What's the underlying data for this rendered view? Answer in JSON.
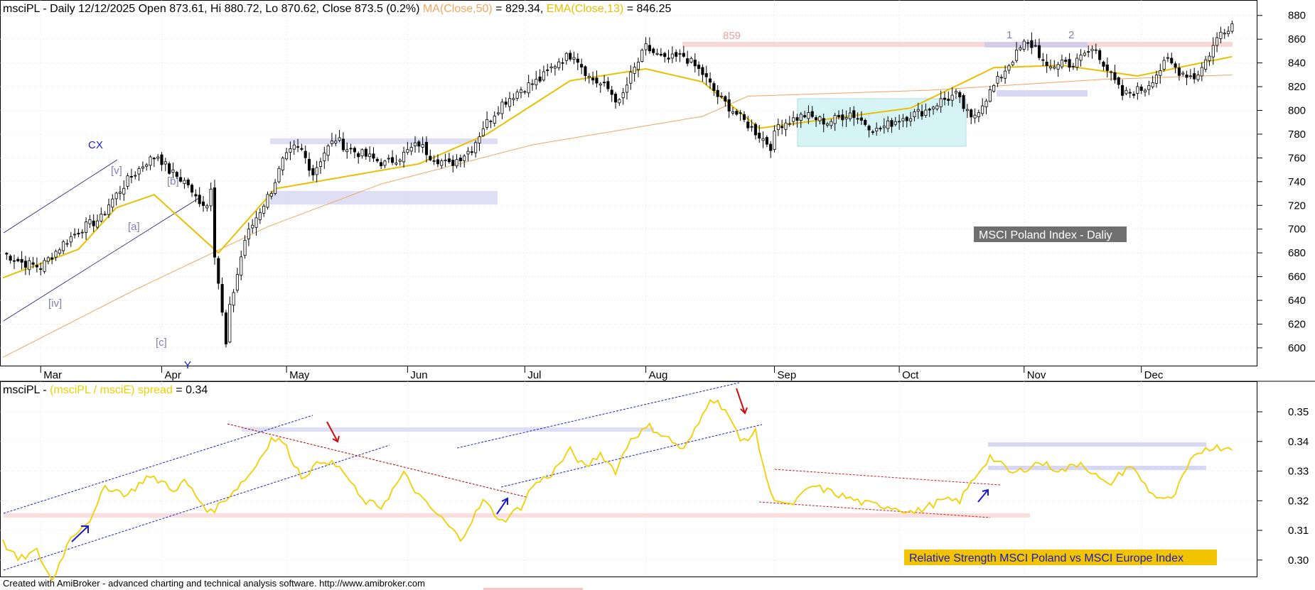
{
  "header": {
    "symbol": "msciPL",
    "info": " - Daily 12/12/2025 Open 873.61, Hi 880.72, Lo 870.62, Close 873.5 (0.2%) ",
    "ma_label": "MA(Close,50)",
    "ma_value": " = 829.34, ",
    "ema_label": "EMA(Close,13)",
    "ema_value": " = 846.25"
  },
  "lower_header": {
    "symbol": "msciPL",
    "sep": " - ",
    "spread_label": "(msciPL / msciE) spread",
    "spread_value": " = 0.34"
  },
  "footer": "Created with AmiBroker - advanced charting and technical analysis software. http://www.amibroker.com",
  "chart_data": [
    {
      "type": "candlestick",
      "series": [
        {
          "name": "msciPL",
          "kind": "ohlc"
        },
        {
          "name": "MA(Close,50)",
          "color": "#f4a460"
        },
        {
          "name": "EMA(Close,13)",
          "color": "#e8c000"
        }
      ],
      "x_months": [
        "Mar",
        "Apr",
        "May",
        "Jun",
        "Jul",
        "Aug",
        "Sep",
        "Oct",
        "Nov",
        "Dec"
      ],
      "y_ticks": [
        600,
        620,
        640,
        660,
        680,
        700,
        720,
        740,
        760,
        780,
        800,
        820,
        840,
        860,
        880
      ],
      "ylim": [
        585,
        893
      ],
      "close_path": [
        [
          0,
          680
        ],
        [
          5,
          672
        ],
        [
          10,
          668
        ],
        [
          16,
          688
        ],
        [
          21,
          701
        ],
        [
          26,
          709
        ],
        [
          28,
          721
        ],
        [
          33,
          741
        ],
        [
          38,
          757
        ],
        [
          41,
          762
        ],
        [
          44,
          749
        ],
        [
          49,
          738
        ],
        [
          50,
          729
        ],
        [
          53,
          722
        ],
        [
          54,
          720
        ],
        [
          55,
          737
        ],
        [
          55,
          705
        ],
        [
          57,
          655
        ],
        [
          59,
          602
        ],
        [
          60,
          633
        ],
        [
          61,
          648
        ],
        [
          64,
          691
        ],
        [
          67,
          710
        ],
        [
          71,
          733
        ],
        [
          74,
          757
        ],
        [
          77,
          768
        ],
        [
          79,
          766
        ],
        [
          82,
          747
        ],
        [
          85,
          765
        ],
        [
          88,
          776
        ],
        [
          91,
          768
        ],
        [
          95,
          763
        ],
        [
          101,
          755
        ],
        [
          105,
          761
        ],
        [
          110,
          772
        ],
        [
          113,
          762
        ],
        [
          118,
          754
        ],
        [
          124,
          768
        ],
        [
          127,
          786
        ],
        [
          132,
          806
        ],
        [
          137,
          818
        ],
        [
          142,
          826
        ],
        [
          147,
          842
        ],
        [
          151,
          848
        ],
        [
          155,
          828
        ],
        [
          160,
          818
        ],
        [
          163,
          806
        ],
        [
          166,
          829
        ],
        [
          170,
          853
        ],
        [
          175,
          842
        ],
        [
          180,
          846
        ],
        [
          185,
          831
        ],
        [
          189,
          812
        ],
        [
          195,
          794
        ],
        [
          200,
          779
        ],
        [
          203,
          770
        ],
        [
          205,
          788
        ],
        [
          212,
          796
        ],
        [
          218,
          790
        ],
        [
          224,
          798
        ],
        [
          231,
          783
        ],
        [
          237,
          793
        ],
        [
          244,
          800
        ],
        [
          248,
          808
        ],
        [
          252,
          813
        ],
        [
          256,
          792
        ],
        [
          263,
          825
        ],
        [
          266,
          839
        ],
        [
          270,
          856
        ],
        [
          273,
          854
        ],
        [
          276,
          834
        ],
        [
          280,
          842
        ],
        [
          283,
          838
        ],
        [
          286,
          848
        ],
        [
          289,
          852
        ],
        [
          291,
          840
        ],
        [
          296,
          813
        ],
        [
          302,
          819
        ],
        [
          305,
          831
        ],
        [
          308,
          842
        ],
        [
          311,
          833
        ],
        [
          315,
          828
        ],
        [
          317,
          836
        ],
        [
          322,
          866
        ],
        [
          325,
          873
        ]
      ],
      "ma50_points": [
        [
          0,
          592
        ],
        [
          35,
          649
        ],
        [
          70,
          702
        ],
        [
          100,
          738
        ],
        [
          140,
          771
        ],
        [
          185,
          795
        ],
        [
          197,
          812
        ],
        [
          245,
          817
        ],
        [
          290,
          826
        ],
        [
          326,
          830
        ]
      ],
      "ema13_points": [
        [
          0,
          659
        ],
        [
          20,
          683
        ],
        [
          30,
          718
        ],
        [
          40,
          729
        ],
        [
          57,
          680
        ],
        [
          72,
          734
        ],
        [
          110,
          755
        ],
        [
          128,
          780
        ],
        [
          150,
          825
        ],
        [
          170,
          835
        ],
        [
          185,
          824
        ],
        [
          200,
          785
        ],
        [
          240,
          802
        ],
        [
          262,
          836
        ],
        [
          280,
          838
        ],
        [
          300,
          829
        ],
        [
          326,
          846
        ]
      ],
      "support_resistance": [
        "859"
      ],
      "wave_labels": [
        "CX",
        "[v]",
        "[b]",
        "[a]",
        "[iv]",
        "[c]",
        "Y",
        "1",
        "2"
      ],
      "annotation": "MSCI Poland Index - Daliy"
    },
    {
      "type": "line",
      "series": [
        {
          "name": "(msciPL / msciE) spread",
          "color": "#f2cf00"
        }
      ],
      "y_ticks": [
        0.3,
        0.31,
        0.32,
        0.33,
        0.34,
        0.35
      ],
      "ylim": [
        0.2942,
        0.3603
      ],
      "line_points": [
        [
          0,
          0.306
        ],
        [
          4,
          0.3
        ],
        [
          9,
          0.303
        ],
        [
          13,
          0.293
        ],
        [
          18,
          0.308
        ],
        [
          24,
          0.315
        ],
        [
          27,
          0.325
        ],
        [
          33,
          0.322
        ],
        [
          38,
          0.328
        ],
        [
          43,
          0.326
        ],
        [
          46,
          0.323
        ],
        [
          48,
          0.327
        ],
        [
          52,
          0.32
        ],
        [
          55,
          0.316
        ],
        [
          60,
          0.322
        ],
        [
          66,
          0.33
        ],
        [
          71,
          0.341
        ],
        [
          74,
          0.34
        ],
        [
          79,
          0.328
        ],
        [
          85,
          0.334
        ],
        [
          90,
          0.33
        ],
        [
          95,
          0.32
        ],
        [
          100,
          0.318
        ],
        [
          106,
          0.329
        ],
        [
          111,
          0.32
        ],
        [
          116,
          0.314
        ],
        [
          121,
          0.307
        ],
        [
          127,
          0.32
        ],
        [
          132,
          0.313
        ],
        [
          137,
          0.318
        ],
        [
          140,
          0.325
        ],
        [
          145,
          0.329
        ],
        [
          150,
          0.337
        ],
        [
          154,
          0.331
        ],
        [
          158,
          0.336
        ],
        [
          162,
          0.33
        ],
        [
          166,
          0.341
        ],
        [
          171,
          0.345
        ],
        [
          176,
          0.341
        ],
        [
          180,
          0.337
        ],
        [
          184,
          0.346
        ],
        [
          187,
          0.355
        ],
        [
          191,
          0.351
        ],
        [
          195,
          0.34
        ],
        [
          199,
          0.343
        ],
        [
          203,
          0.322
        ],
        [
          208,
          0.318
        ],
        [
          214,
          0.325
        ],
        [
          221,
          0.322
        ],
        [
          228,
          0.319
        ],
        [
          235,
          0.318
        ],
        [
          241,
          0.316
        ],
        [
          248,
          0.32
        ],
        [
          253,
          0.32
        ],
        [
          257,
          0.328
        ],
        [
          261,
          0.335
        ],
        [
          267,
          0.329
        ],
        [
          274,
          0.333
        ],
        [
          280,
          0.33
        ],
        [
          285,
          0.333
        ],
        [
          292,
          0.325
        ],
        [
          298,
          0.332
        ],
        [
          304,
          0.322
        ],
        [
          309,
          0.32
        ],
        [
          314,
          0.333
        ],
        [
          318,
          0.338
        ]
      ],
      "annotation": "Relative Strength MSCI Poland vs MSCI Europe Index"
    }
  ]
}
